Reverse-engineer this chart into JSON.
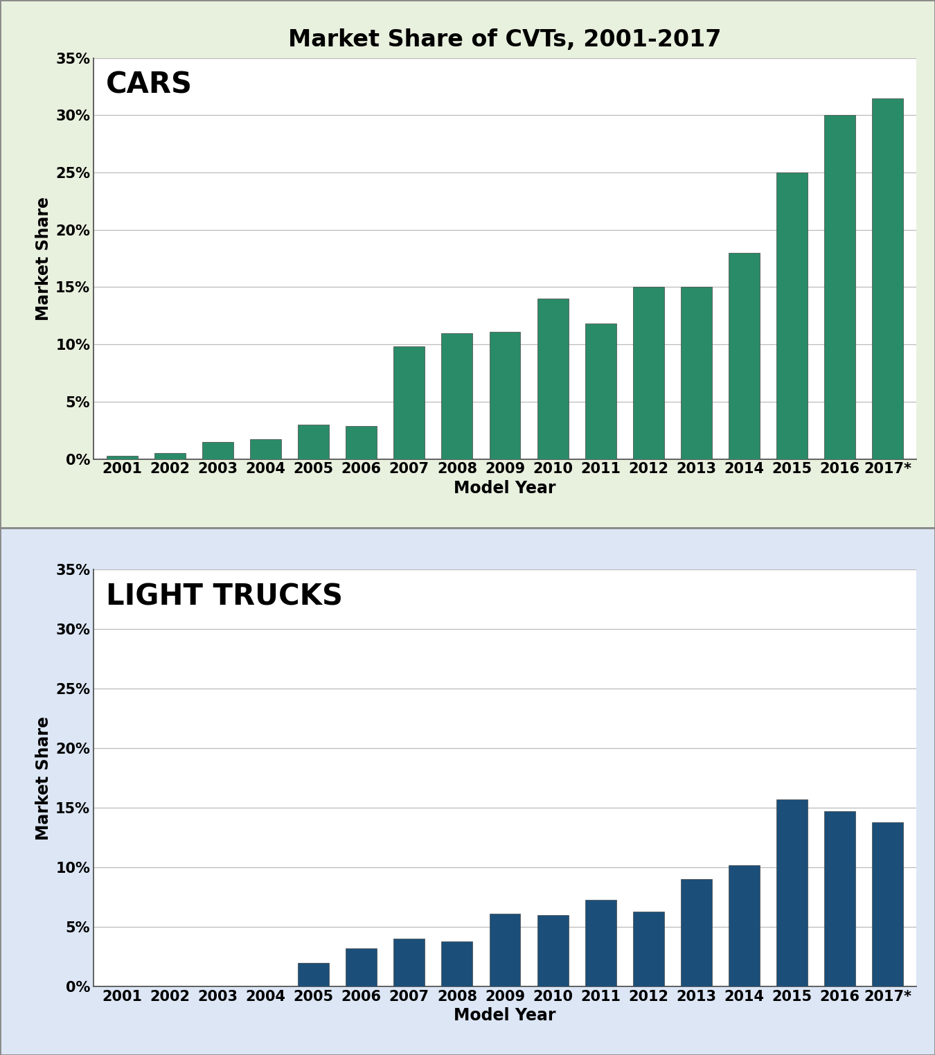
{
  "title": "Market Share of CVTs, 2001-2017",
  "years": [
    "2001",
    "2002",
    "2003",
    "2004",
    "2005",
    "2006",
    "2007",
    "2008",
    "2009",
    "2010",
    "2011",
    "2012",
    "2013",
    "2014",
    "2015",
    "2016",
    "2017*"
  ],
  "cars_values": [
    0.3,
    0.5,
    1.5,
    1.7,
    3.0,
    2.9,
    9.8,
    11.0,
    11.1,
    14.0,
    11.8,
    15.0,
    15.0,
    18.0,
    25.0,
    30.0,
    31.5
  ],
  "trucks_values": [
    0.0,
    0.0,
    0.0,
    0.0,
    2.0,
    3.2,
    4.0,
    3.8,
    6.1,
    6.0,
    7.3,
    6.3,
    9.0,
    10.2,
    15.7,
    14.7,
    13.8
  ],
  "cars_color": "#2a8b68",
  "trucks_color": "#1b4f79",
  "cars_label": "CARS",
  "trucks_label": "LIGHT TRUCKS",
  "ylabel": "Market Share",
  "xlabel": "Model Year",
  "ylim_max": 35,
  "yticks": [
    0,
    5,
    10,
    15,
    20,
    25,
    30,
    35
  ],
  "cars_bg": "#e8f0de",
  "trucks_bg": "#dce6f5",
  "title_fontsize": 24,
  "subplot_label_fontsize": 30,
  "tick_fontsize": 15,
  "axis_label_fontsize": 17,
  "bar_edge_color": "#444444",
  "bar_linewidth": 0.5,
  "bar_width": 0.65,
  "grid_color": "#bbbbbb",
  "spine_color": "#555555"
}
